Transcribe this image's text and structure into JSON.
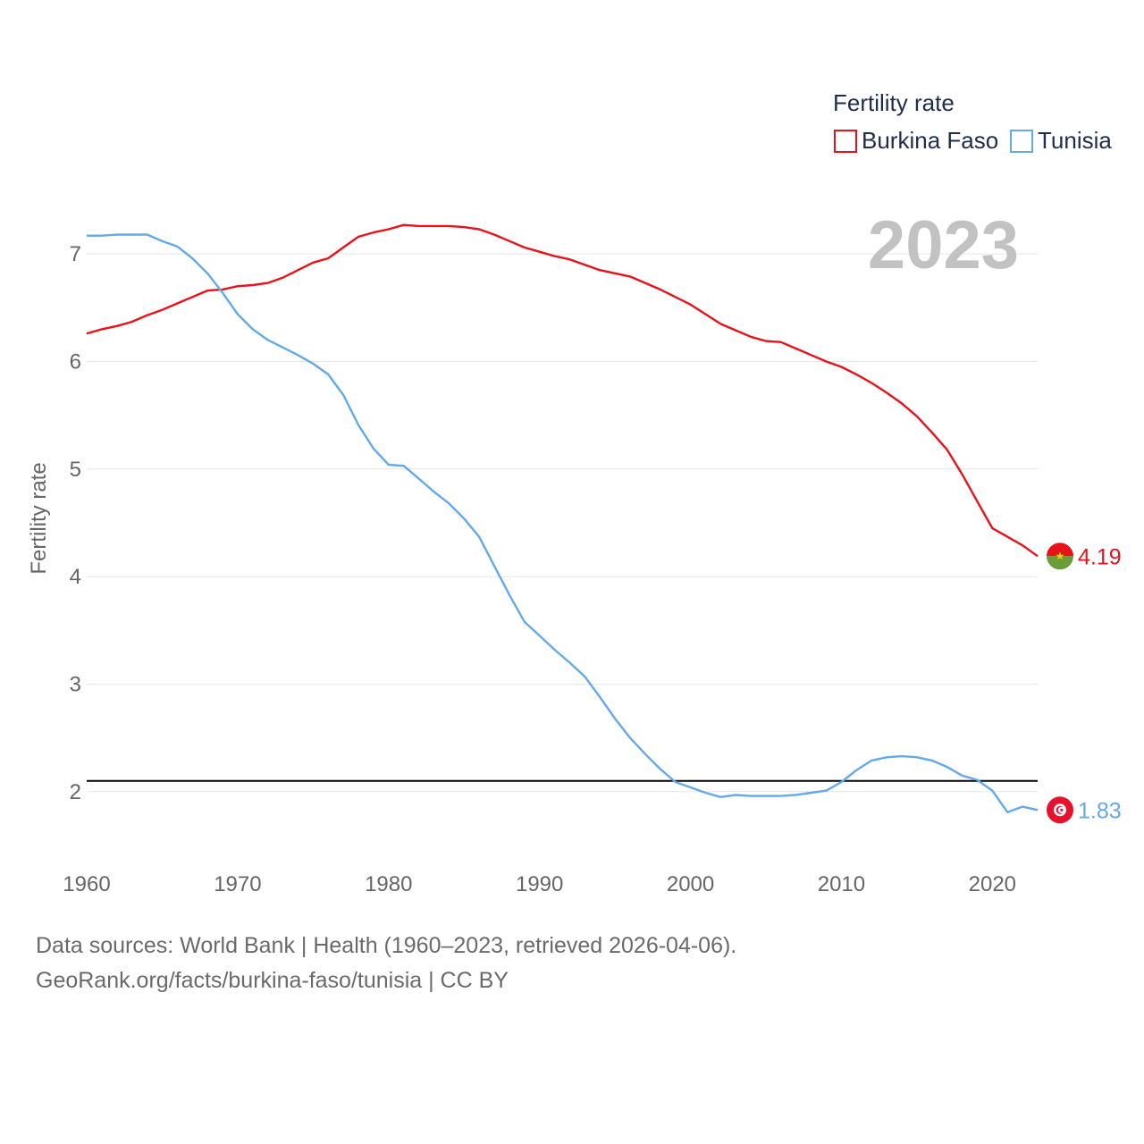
{
  "chart_data": {
    "type": "line",
    "title": "",
    "legend_title": "Fertility rate",
    "ylabel": "Fertility rate",
    "xlabel": "",
    "year_label": "2023",
    "xlim": [
      1960,
      2023
    ],
    "ylim": [
      1.4,
      7.45
    ],
    "x_ticks": [
      1960,
      1970,
      1980,
      1990,
      2000,
      2010,
      2020
    ],
    "x_tick_labels": [
      "1960",
      "1970",
      "1980",
      "1990",
      "2000",
      "2010",
      "2020"
    ],
    "y_ticks": [
      2,
      3,
      4,
      5,
      6,
      7
    ],
    "y_tick_labels": [
      "2",
      "3",
      "4",
      "5",
      "6",
      "7"
    ],
    "reference_line": 2.1,
    "legend_position": "top-right",
    "series": [
      {
        "name": "Burkina Faso",
        "color": "#e8131a",
        "end_label": "4.19",
        "flag": "burkina-faso-flag-icon",
        "x": [
          1960,
          1961,
          1962,
          1963,
          1964,
          1965,
          1966,
          1967,
          1968,
          1969,
          1970,
          1971,
          1972,
          1973,
          1974,
          1975,
          1976,
          1977,
          1978,
          1979,
          1980,
          1981,
          1982,
          1983,
          1984,
          1985,
          1986,
          1987,
          1988,
          1989,
          1990,
          1991,
          1992,
          1993,
          1994,
          1995,
          1996,
          1997,
          1998,
          1999,
          2000,
          2001,
          2002,
          2003,
          2004,
          2005,
          2006,
          2007,
          2008,
          2009,
          2010,
          2011,
          2012,
          2013,
          2014,
          2015,
          2016,
          2017,
          2018,
          2019,
          2020,
          2021,
          2022,
          2023
        ],
        "values": [
          6.26,
          6.3,
          6.33,
          6.37,
          6.43,
          6.48,
          6.54,
          6.6,
          6.66,
          6.67,
          6.7,
          6.71,
          6.73,
          6.78,
          6.85,
          6.92,
          6.96,
          7.06,
          7.16,
          7.2,
          7.23,
          7.27,
          7.26,
          7.26,
          7.26,
          7.25,
          7.23,
          7.18,
          7.12,
          7.06,
          7.02,
          6.98,
          6.95,
          6.9,
          6.85,
          6.82,
          6.79,
          6.73,
          6.67,
          6.6,
          6.53,
          6.44,
          6.35,
          6.29,
          6.23,
          6.19,
          6.18,
          6.12,
          6.06,
          6.0,
          5.95,
          5.88,
          5.8,
          5.71,
          5.61,
          5.49,
          5.34,
          5.18,
          4.95,
          4.7,
          4.45,
          4.37,
          4.29,
          4.19
        ]
      },
      {
        "name": "Tunisia",
        "color": "#64a9e8",
        "end_label": "1.83",
        "flag": "tunisia-flag-icon",
        "x": [
          1960,
          1961,
          1962,
          1963,
          1964,
          1965,
          1966,
          1967,
          1968,
          1969,
          1970,
          1971,
          1972,
          1973,
          1974,
          1975,
          1976,
          1977,
          1978,
          1979,
          1980,
          1981,
          1982,
          1983,
          1984,
          1985,
          1986,
          1987,
          1988,
          1989,
          1990,
          1991,
          1992,
          1993,
          1994,
          1995,
          1996,
          1997,
          1998,
          1999,
          2000,
          2001,
          2002,
          2003,
          2004,
          2005,
          2006,
          2007,
          2008,
          2009,
          2010,
          2011,
          2012,
          2013,
          2014,
          2015,
          2016,
          2017,
          2018,
          2019,
          2020,
          2021,
          2022,
          2023
        ],
        "values": [
          7.17,
          7.17,
          7.18,
          7.18,
          7.18,
          7.12,
          7.07,
          6.96,
          6.82,
          6.64,
          6.44,
          6.3,
          6.2,
          6.13,
          6.06,
          5.98,
          5.88,
          5.69,
          5.41,
          5.19,
          5.04,
          5.03,
          4.91,
          4.79,
          4.68,
          4.54,
          4.37,
          4.1,
          3.83,
          3.58,
          3.45,
          3.32,
          3.2,
          3.07,
          2.88,
          2.68,
          2.5,
          2.35,
          2.21,
          2.09,
          2.04,
          1.99,
          1.95,
          1.97,
          1.96,
          1.96,
          1.96,
          1.97,
          1.99,
          2.01,
          2.09,
          2.2,
          2.29,
          2.32,
          2.33,
          2.32,
          2.29,
          2.23,
          2.15,
          2.11,
          2.01,
          1.81,
          1.86,
          1.83
        ]
      }
    ]
  },
  "source": {
    "line1": "Data sources: World Bank | Health (1960–2023, retrieved 2026-04-06).",
    "line2": "GeoRank.org/facts/burkina-faso/tunisia | CC BY"
  }
}
